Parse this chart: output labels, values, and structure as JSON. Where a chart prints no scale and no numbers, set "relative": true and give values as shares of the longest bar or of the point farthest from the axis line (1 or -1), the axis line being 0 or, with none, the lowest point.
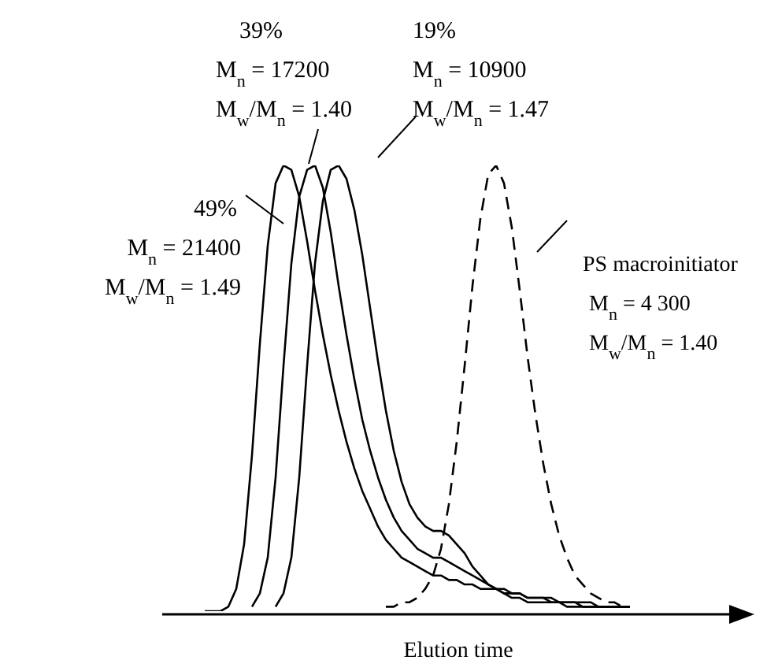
{
  "chart_data": {
    "type": "line",
    "relative": true,
    "xlabel": "Elution time",
    "marker": "none",
    "grid": false,
    "legend": false,
    "categories": [
      null,
      null,
      null,
      null,
      null,
      null,
      null,
      null,
      null,
      null,
      null,
      null,
      null,
      null,
      null,
      null,
      null,
      null,
      null,
      null,
      null,
      null,
      null,
      null,
      null,
      null,
      null,
      null,
      null,
      null,
      null,
      null,
      null,
      null,
      null,
      null,
      null,
      null,
      null,
      null,
      null,
      null,
      null,
      null,
      null,
      null,
      null,
      null,
      null,
      null,
      null,
      null,
      null,
      null,
      null,
      null,
      null,
      null,
      null,
      null
    ],
    "series": [
      {
        "color": "#000000",
        "line_style": "solid",
        "values": [
          0,
          0,
          0,
          0.01,
          0.05,
          0.15,
          0.35,
          0.6,
          0.82,
          0.96,
          1.0,
          0.99,
          0.93,
          0.83,
          0.72,
          0.62,
          0.53,
          0.45,
          0.38,
          0.32,
          0.27,
          0.23,
          0.19,
          0.16,
          0.14,
          0.12,
          0.11,
          0.1,
          0.09,
          0.08,
          0.08,
          0.07,
          0.07,
          0.06,
          0.06,
          0.05,
          0.05,
          0.05,
          0.04,
          0.04,
          0.04,
          0.03,
          0.03,
          0.03,
          0.03,
          0.02,
          0.02,
          0.02,
          0.02,
          0.02,
          0.01,
          0.01,
          0.01,
          0.01,
          0.01,
          null,
          null,
          null,
          null,
          null
        ]
      },
      {
        "color": "#000000",
        "line_style": "solid",
        "values": [
          null,
          null,
          null,
          null,
          null,
          null,
          0.01,
          0.04,
          0.12,
          0.3,
          0.55,
          0.78,
          0.93,
          0.99,
          1.0,
          0.95,
          0.85,
          0.73,
          0.62,
          0.52,
          0.43,
          0.36,
          0.3,
          0.25,
          0.21,
          0.18,
          0.16,
          0.14,
          0.13,
          0.12,
          0.12,
          0.11,
          0.1,
          0.09,
          0.08,
          0.07,
          0.06,
          0.05,
          0.05,
          0.04,
          0.04,
          0.03,
          0.03,
          0.03,
          0.02,
          0.02,
          0.02,
          0.02,
          0.01,
          0.01,
          0.01,
          0.01,
          0.01,
          0.01,
          0.01,
          null,
          null,
          null,
          null,
          null
        ]
      },
      {
        "color": "#000000",
        "line_style": "solid",
        "values": [
          null,
          null,
          null,
          null,
          null,
          null,
          null,
          null,
          null,
          0.01,
          0.04,
          0.12,
          0.3,
          0.55,
          0.78,
          0.92,
          0.99,
          1.0,
          0.97,
          0.9,
          0.8,
          0.68,
          0.56,
          0.45,
          0.36,
          0.29,
          0.24,
          0.21,
          0.19,
          0.18,
          0.18,
          0.17,
          0.15,
          0.13,
          0.1,
          0.08,
          0.06,
          0.05,
          0.04,
          0.03,
          0.03,
          0.02,
          0.02,
          0.02,
          0.02,
          0.02,
          0.01,
          0.01,
          0.01,
          0.01,
          0.01,
          0.01,
          0.01,
          0.01,
          0.01,
          null,
          null,
          null,
          null,
          null
        ]
      },
      {
        "color": "#000000",
        "line_style": "dashed",
        "values": [
          null,
          null,
          null,
          null,
          null,
          null,
          null,
          null,
          null,
          null,
          null,
          null,
          null,
          null,
          null,
          null,
          null,
          null,
          null,
          null,
          null,
          null,
          null,
          0.01,
          0.01,
          0.02,
          0.02,
          0.03,
          0.05,
          0.08,
          0.14,
          0.24,
          0.38,
          0.55,
          0.73,
          0.88,
          0.98,
          1.0,
          0.96,
          0.86,
          0.72,
          0.57,
          0.44,
          0.33,
          0.24,
          0.17,
          0.12,
          0.08,
          0.06,
          0.04,
          0.03,
          0.02,
          0.02,
          0.01,
          0.01,
          null,
          null,
          null,
          null,
          null
        ]
      }
    ],
    "annotations": [
      "39%\nM$_{n}$  = 17200\nM$_{w}$/M$_{n}$ = 1.40",
      "19%\nM$_{n}$ = 10900\nM$_{w}$/M$_{n}$ = 1.47",
      "49%\nM$_{n}$ = 21400\nM$_{w}$/M$_{n}$ = 1.49",
      "PS macroinitiator\nM$_{n}$  = 4 300\nM$_{w}$/M$_{n}$ = 1.40"
    ]
  }
}
